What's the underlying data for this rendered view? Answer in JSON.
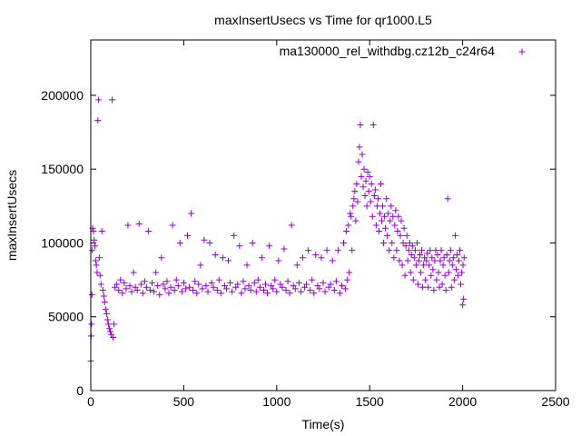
{
  "chart_data": {
    "type": "scatter",
    "title": "maxInsertUsecs vs Time for qr1000.L5",
    "xlabel": "Time(s)",
    "ylabel": "maxInsertUsecs",
    "xlim": [
      0,
      2500
    ],
    "ylim": [
      0,
      237500
    ],
    "xticks": [
      0,
      500,
      1000,
      1500,
      2000,
      2500
    ],
    "yticks": [
      0,
      50000,
      100000,
      150000,
      200000
    ],
    "xtick_labels": [
      "0",
      "500",
      "1000",
      "1500",
      "2000",
      "2500"
    ],
    "ytick_labels": [
      "0",
      "50000",
      "100000",
      "150000",
      "200000"
    ],
    "grid": false,
    "legend_position": "top-right",
    "series": [
      {
        "name": "ma130000_rel_withdbg.cz12b_c24r64",
        "color": "#9400d3",
        "marker": "+",
        "points": [
          [
            0,
            20000
          ],
          [
            2,
            37000
          ],
          [
            4,
            45000
          ],
          [
            6,
            65000
          ],
          [
            8,
            95000
          ],
          [
            10,
            110000
          ],
          [
            14,
            108000
          ],
          [
            18,
            102000
          ],
          [
            22,
            98000
          ],
          [
            26,
            88000
          ],
          [
            30,
            85000
          ],
          [
            34,
            80000
          ],
          [
            38,
            183000
          ],
          [
            42,
            197000
          ],
          [
            46,
            90000
          ],
          [
            50,
            78000
          ],
          [
            55,
            72000
          ],
          [
            60,
            108000
          ],
          [
            65,
            68000
          ],
          [
            70,
            64000
          ],
          [
            75,
            60000
          ],
          [
            80,
            55000
          ],
          [
            85,
            52000
          ],
          [
            90,
            48000
          ],
          [
            95,
            45000
          ],
          [
            100,
            42000
          ],
          [
            105,
            40000
          ],
          [
            110,
            38000
          ],
          [
            115,
            197000
          ],
          [
            120,
            36000
          ],
          [
            125,
            45000
          ],
          [
            130,
            70000
          ],
          [
            140,
            72000
          ],
          [
            150,
            68000
          ],
          [
            160,
            75000
          ],
          [
            170,
            66000
          ],
          [
            180,
            73000
          ],
          [
            190,
            69000
          ],
          [
            200,
            112000
          ],
          [
            210,
            71000
          ],
          [
            220,
            67000
          ],
          [
            230,
            80000
          ],
          [
            240,
            70000
          ],
          [
            250,
            68000
          ],
          [
            260,
            113000
          ],
          [
            270,
            72000
          ],
          [
            280,
            66000
          ],
          [
            290,
            74000
          ],
          [
            300,
            70000
          ],
          [
            310,
            108000
          ],
          [
            320,
            68000
          ],
          [
            330,
            73000
          ],
          [
            340,
            67000
          ],
          [
            350,
            80000
          ],
          [
            360,
            71000
          ],
          [
            370,
            65000
          ],
          [
            380,
            90000
          ],
          [
            390,
            72000
          ],
          [
            400,
            69000
          ],
          [
            410,
            74000
          ],
          [
            420,
            66000
          ],
          [
            430,
            70000
          ],
          [
            440,
            112000
          ],
          [
            450,
            68000
          ],
          [
            460,
            75000
          ],
          [
            470,
            71000
          ],
          [
            480,
            100000
          ],
          [
            490,
            67000
          ],
          [
            500,
            73000
          ],
          [
            510,
            69000
          ],
          [
            520,
            105000
          ],
          [
            530,
            70000
          ],
          [
            540,
            120000
          ],
          [
            550,
            68000
          ],
          [
            560,
            74000
          ],
          [
            570,
            66000
          ],
          [
            580,
            72000
          ],
          [
            590,
            85000
          ],
          [
            600,
            69000
          ],
          [
            610,
            102000
          ],
          [
            620,
            71000
          ],
          [
            630,
            67000
          ],
          [
            640,
            100000
          ],
          [
            650,
            73000
          ],
          [
            660,
            70000
          ],
          [
            670,
            92000
          ],
          [
            680,
            68000
          ],
          [
            690,
            75000
          ],
          [
            700,
            66000
          ],
          [
            710,
            90000
          ],
          [
            720,
            71000
          ],
          [
            730,
            69000
          ],
          [
            740,
            88000
          ],
          [
            750,
            73000
          ],
          [
            760,
            67000
          ],
          [
            770,
            105000
          ],
          [
            780,
            70000
          ],
          [
            790,
            72000
          ],
          [
            800,
            98000
          ],
          [
            810,
            66000
          ],
          [
            820,
            74000
          ],
          [
            830,
            69000
          ],
          [
            840,
            85000
          ],
          [
            850,
            71000
          ],
          [
            860,
            68000
          ],
          [
            870,
            100000
          ],
          [
            880,
            73000
          ],
          [
            890,
            67000
          ],
          [
            900,
            75000
          ],
          [
            910,
            70000
          ],
          [
            920,
            90000
          ],
          [
            930,
            68000
          ],
          [
            940,
            72000
          ],
          [
            950,
            66000
          ],
          [
            960,
            98000
          ],
          [
            970,
            71000
          ],
          [
            980,
            69000
          ],
          [
            990,
            75000
          ],
          [
            1000,
            67000
          ],
          [
            1010,
            88000
          ],
          [
            1020,
            72000
          ],
          [
            1030,
            70000
          ],
          [
            1040,
            96000
          ],
          [
            1050,
            68000
          ],
          [
            1060,
            74000
          ],
          [
            1070,
            66000
          ],
          [
            1080,
            112000
          ],
          [
            1090,
            71000
          ],
          [
            1100,
            69000
          ],
          [
            1110,
            85000
          ],
          [
            1120,
            73000
          ],
          [
            1130,
            67000
          ],
          [
            1140,
            90000
          ],
          [
            1150,
            70000
          ],
          [
            1160,
            72000
          ],
          [
            1170,
            95000
          ],
          [
            1180,
            68000
          ],
          [
            1190,
            75000
          ],
          [
            1200,
            66000
          ],
          [
            1210,
            92000
          ],
          [
            1220,
            71000
          ],
          [
            1230,
            69000
          ],
          [
            1240,
            90000
          ],
          [
            1250,
            73000
          ],
          [
            1260,
            67000
          ],
          [
            1270,
            95000
          ],
          [
            1280,
            70000
          ],
          [
            1290,
            72000
          ],
          [
            1300,
            88000
          ],
          [
            1310,
            68000
          ],
          [
            1320,
            74000
          ],
          [
            1330,
            95000
          ],
          [
            1340,
            66000
          ],
          [
            1350,
            71000
          ],
          [
            1360,
            100000
          ],
          [
            1370,
            69000
          ],
          [
            1375,
            108000
          ],
          [
            1380,
            75000
          ],
          [
            1385,
            112000
          ],
          [
            1390,
            80000
          ],
          [
            1395,
            120000
          ],
          [
            1400,
            118000
          ],
          [
            1405,
            95000
          ],
          [
            1410,
            125000
          ],
          [
            1415,
            130000
          ],
          [
            1420,
            135000
          ],
          [
            1425,
            115000
          ],
          [
            1430,
            140000
          ],
          [
            1435,
            128000
          ],
          [
            1440,
            155000
          ],
          [
            1445,
            165000
          ],
          [
            1450,
            180000
          ],
          [
            1455,
            145000
          ],
          [
            1460,
            160000
          ],
          [
            1465,
            138000
          ],
          [
            1470,
            150000
          ],
          [
            1475,
            132000
          ],
          [
            1480,
            142000
          ],
          [
            1485,
            125000
          ],
          [
            1490,
            148000
          ],
          [
            1495,
            135000
          ],
          [
            1500,
            145000
          ],
          [
            1505,
            128000
          ],
          [
            1510,
            140000
          ],
          [
            1515,
            118000
          ],
          [
            1520,
            180000
          ],
          [
            1525,
            132000
          ],
          [
            1530,
            136000
          ],
          [
            1535,
            112000
          ],
          [
            1540,
            125000
          ],
          [
            1545,
            130000
          ],
          [
            1550,
            108000
          ],
          [
            1555,
            120000
          ],
          [
            1560,
            140000
          ],
          [
            1565,
            115000
          ],
          [
            1570,
            125000
          ],
          [
            1575,
            100000
          ],
          [
            1580,
            118000
          ],
          [
            1585,
            110000
          ],
          [
            1590,
            130000
          ],
          [
            1595,
            105000
          ],
          [
            1600,
            120000
          ],
          [
            1605,
            95000
          ],
          [
            1610,
            115000
          ],
          [
            1615,
            125000
          ],
          [
            1620,
            100000
          ],
          [
            1625,
            118000
          ],
          [
            1630,
            90000
          ],
          [
            1635,
            112000
          ],
          [
            1640,
            122000
          ],
          [
            1645,
            95000
          ],
          [
            1650,
            108000
          ],
          [
            1655,
            118000
          ],
          [
            1660,
            88000
          ],
          [
            1665,
            105000
          ],
          [
            1670,
            115000
          ],
          [
            1675,
            85000
          ],
          [
            1680,
            100000
          ],
          [
            1685,
            110000
          ],
          [
            1690,
            78000
          ],
          [
            1695,
            98000
          ],
          [
            1700,
            105000
          ],
          [
            1705,
            88000
          ],
          [
            1710,
            95000
          ],
          [
            1715,
            100000
          ],
          [
            1720,
            80000
          ],
          [
            1725,
            92000
          ],
          [
            1730,
            98000
          ],
          [
            1735,
            75000
          ],
          [
            1740,
            90000
          ],
          [
            1745,
            95000
          ],
          [
            1750,
            85000
          ],
          [
            1755,
            100000
          ],
          [
            1760,
            72000
          ],
          [
            1765,
            88000
          ],
          [
            1770,
            92000
          ],
          [
            1775,
            80000
          ],
          [
            1780,
            95000
          ],
          [
            1785,
            70000
          ],
          [
            1790,
            85000
          ],
          [
            1795,
            90000
          ],
          [
            1800,
            75000
          ],
          [
            1805,
            88000
          ],
          [
            1810,
            93000
          ],
          [
            1815,
            70000
          ],
          [
            1820,
            85000
          ],
          [
            1825,
            95000
          ],
          [
            1830,
            78000
          ],
          [
            1835,
            90000
          ],
          [
            1840,
            82000
          ],
          [
            1845,
            68000
          ],
          [
            1850,
            88000
          ],
          [
            1855,
            95000
          ],
          [
            1860,
            75000
          ],
          [
            1865,
            92000
          ],
          [
            1870,
            80000
          ],
          [
            1875,
            70000
          ],
          [
            1880,
            88000
          ],
          [
            1885,
            95000
          ],
          [
            1890,
            72000
          ],
          [
            1895,
            85000
          ],
          [
            1900,
            90000
          ],
          [
            1905,
            78000
          ],
          [
            1910,
            68000
          ],
          [
            1915,
            92000
          ],
          [
            1920,
            130000
          ],
          [
            1925,
            80000
          ],
          [
            1930,
            88000
          ],
          [
            1935,
            95000
          ],
          [
            1940,
            70000
          ],
          [
            1945,
            85000
          ],
          [
            1950,
            90000
          ],
          [
            1955,
            75000
          ],
          [
            1960,
            105000
          ],
          [
            1965,
            82000
          ],
          [
            1970,
            92000
          ],
          [
            1975,
            78000
          ],
          [
            1980,
            88000
          ],
          [
            1985,
            95000
          ],
          [
            1990,
            72000
          ],
          [
            1995,
            80000
          ],
          [
            2000,
            58000
          ],
          [
            2002,
            85000
          ],
          [
            2005,
            62000
          ],
          [
            2008,
            90000
          ]
        ]
      }
    ]
  }
}
